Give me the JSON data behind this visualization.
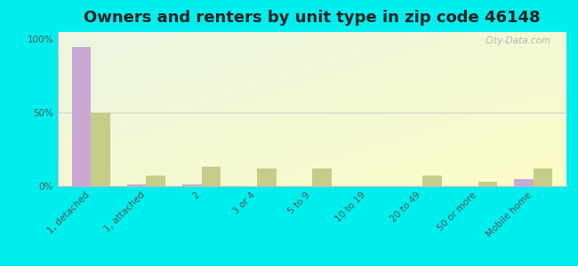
{
  "title": "Owners and renters by unit type in zip code 46148",
  "categories": [
    "1, detached",
    "1, attached",
    "2",
    "3 or 4",
    "5 to 9",
    "10 to 19",
    "20 to 49",
    "50 or more",
    "Mobile home"
  ],
  "owner_values": [
    95,
    1,
    1,
    0,
    0,
    0,
    0,
    0,
    5
  ],
  "renter_values": [
    50,
    7,
    13,
    12,
    12,
    0,
    7,
    3,
    12
  ],
  "owner_color": "#c9a8d4",
  "renter_color": "#c8cc8a",
  "background_color": "#00eeee",
  "plot_bg_top_left": "#e8f5e0",
  "plot_bg_bottom_right": "#f5f8e8",
  "yticks": [
    0,
    50,
    100
  ],
  "ytick_labels": [
    "0%",
    "50%",
    "100%"
  ],
  "ylim": [
    0,
    105
  ],
  "watermark": "City-Data.com",
  "title_fontsize": 13,
  "tick_fontsize": 7.5,
  "legend_fontsize": 9,
  "bar_width": 0.35
}
